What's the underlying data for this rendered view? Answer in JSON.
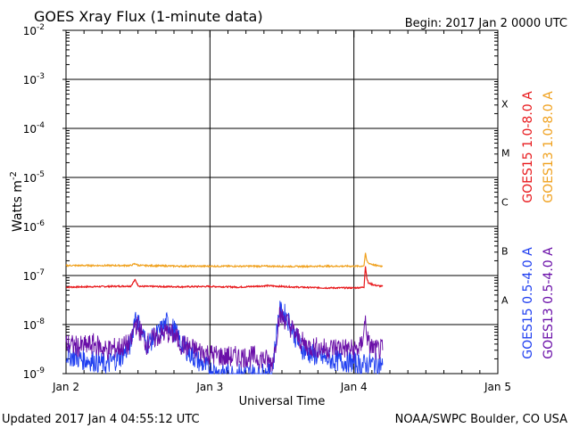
{
  "chart_data": {
    "type": "line",
    "title": "GOES Xray Flux (1-minute data)",
    "begin_label": "Begin:  2017 Jan 2 0000 UTC",
    "xlabel": "Universal Time",
    "ylabel_base": "Watts m",
    "ylabel_exp": "-2",
    "yscale": "log",
    "ylim": [
      1e-09,
      0.01
    ],
    "xlim": [
      0,
      3
    ],
    "grid": true,
    "x_ticks": [
      {
        "value": 0,
        "label": "Jan 2"
      },
      {
        "value": 1,
        "label": "Jan 3"
      },
      {
        "value": 2,
        "label": "Jan 4"
      },
      {
        "value": 3,
        "label": "Jan 5"
      }
    ],
    "y_ticks": [
      {
        "value": 0.01,
        "exp": "-2"
      },
      {
        "value": 0.001,
        "exp": "-3"
      },
      {
        "value": 0.0001,
        "exp": "-4"
      },
      {
        "value": 1e-05,
        "exp": "-5"
      },
      {
        "value": 1e-06,
        "exp": "-6"
      },
      {
        "value": 1e-07,
        "exp": "-7"
      },
      {
        "value": 1e-08,
        "exp": "-8"
      },
      {
        "value": 1e-09,
        "exp": "-9"
      }
    ],
    "flare_classes": [
      {
        "label": "X",
        "value": 0.000316
      },
      {
        "label": "M",
        "value": 3.16e-05
      },
      {
        "label": "C",
        "value": 3.16e-06
      },
      {
        "label": "B",
        "value": 3.16e-07
      },
      {
        "label": "A",
        "value": 3.16e-08
      }
    ],
    "series": [
      {
        "name": "GOES15 1.0-8.0 A",
        "color": "#e8191c",
        "x": [
          0,
          0.3,
          0.45,
          0.48,
          0.5,
          0.52,
          0.55,
          0.8,
          1.0,
          1.2,
          1.4,
          1.6,
          1.8,
          2.0,
          2.05,
          2.07,
          2.08,
          2.09,
          2.1,
          2.15,
          2.2
        ],
        "values": [
          5.8e-08,
          6e-08,
          6.1e-08,
          8.2e-08,
          6.3e-08,
          6e-08,
          6e-08,
          5.9e-08,
          6e-08,
          5.8e-08,
          6.2e-08,
          5.8e-08,
          5.6e-08,
          5.6e-08,
          5.7e-08,
          5.8e-08,
          1.55e-07,
          9e-08,
          7e-08,
          6.3e-08,
          6e-08
        ]
      },
      {
        "name": "GOES13 1.0-8.0 A",
        "color": "#f0a11e",
        "x": [
          0,
          0.3,
          0.45,
          0.48,
          0.5,
          0.52,
          0.8,
          1.0,
          1.2,
          1.4,
          1.6,
          1.8,
          2.0,
          2.05,
          2.07,
          2.08,
          2.09,
          2.1,
          2.15,
          2.2
        ],
        "values": [
          1.6e-07,
          1.6e-07,
          1.6e-07,
          1.75e-07,
          1.62e-07,
          1.6e-07,
          1.55e-07,
          1.55e-07,
          1.55e-07,
          1.55e-07,
          1.53e-07,
          1.55e-07,
          1.55e-07,
          1.55e-07,
          1.6e-07,
          2.8e-07,
          2e-07,
          1.8e-07,
          1.6e-07,
          1.55e-07
        ]
      },
      {
        "name": "GOES15 0.5-4.0 A",
        "color": "#1f3ef0",
        "x": [
          0,
          0.1,
          0.2,
          0.28,
          0.38,
          0.45,
          0.48,
          0.52,
          0.56,
          0.6,
          0.65,
          0.7,
          0.75,
          0.8,
          0.9,
          1.0,
          1.1,
          1.2,
          1.3,
          1.38,
          1.43,
          1.45,
          1.48,
          1.52,
          1.56,
          1.6,
          1.65,
          1.7,
          1.8,
          1.9,
          2.0,
          2.05,
          2.1,
          2.15,
          2.2
        ],
        "values": [
          2.5e-09,
          2e-09,
          1.8e-09,
          1.5e-09,
          2.2e-09,
          4e-09,
          1.6e-08,
          8e-09,
          4e-09,
          5e-09,
          7e-09,
          1.1e-08,
          8e-09,
          4e-09,
          2e-09,
          1.2e-09,
          1e-09,
          1e-09,
          1e-09,
          1e-09,
          1e-09,
          3e-09,
          1.9e-08,
          1.6e-08,
          1e-08,
          5e-09,
          3e-09,
          2.5e-09,
          2e-09,
          1.8e-09,
          1.7e-09,
          1.5e-09,
          1.6e-09,
          1.6e-09,
          1.5e-09
        ]
      },
      {
        "name": "GOES13 0.5-4.0 A",
        "color": "#6a0fa8",
        "x": [
          0,
          0.1,
          0.2,
          0.28,
          0.38,
          0.45,
          0.48,
          0.52,
          0.56,
          0.6,
          0.65,
          0.7,
          0.75,
          0.8,
          0.9,
          1.0,
          1.1,
          1.2,
          1.3,
          1.38,
          1.43,
          1.45,
          1.48,
          1.52,
          1.56,
          1.6,
          1.65,
          1.7,
          1.8,
          1.9,
          2.0,
          2.05,
          2.08,
          2.1,
          2.15,
          2.2
        ],
        "values": [
          4e-09,
          3.5e-09,
          4e-09,
          3e-09,
          3.5e-09,
          4e-09,
          1.1e-08,
          7e-09,
          4e-09,
          5e-09,
          6e-09,
          7e-09,
          6e-09,
          4e-09,
          3e-09,
          2.5e-09,
          2.2e-09,
          2.2e-09,
          2.2e-09,
          2e-09,
          1.6e-09,
          3e-09,
          1.5e-08,
          1.3e-08,
          9e-09,
          6e-09,
          4e-09,
          3.5e-09,
          3.2e-09,
          3.5e-09,
          3e-09,
          3.5e-09,
          1.2e-08,
          4e-09,
          3e-09,
          3e-09
        ]
      }
    ]
  },
  "footer": {
    "updated": "Updated 2017 Jan  4 04:55:12 UTC",
    "credit": "NOAA/SWPC Boulder, CO USA"
  }
}
